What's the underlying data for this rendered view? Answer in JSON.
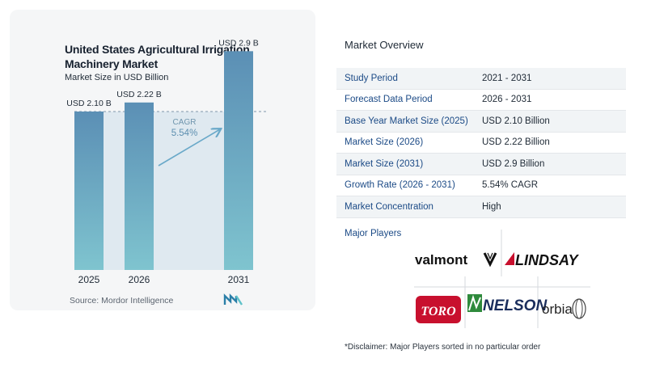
{
  "chart_data": {
    "type": "bar",
    "title": "United States Agricultural Irrigation Machinery Market",
    "subtitle": "Market Size in USD Billion",
    "categories": [
      "2025",
      "2026",
      "2031"
    ],
    "values": [
      2.1,
      2.22,
      2.9
    ],
    "value_labels": [
      "USD 2.10 B",
      "USD 2.22 B",
      "USD 2.9 B"
    ],
    "ylim": [
      0,
      3.0
    ],
    "cagr_label": "CAGR",
    "cagr_value": "5.54%",
    "colors": {
      "bar_top": "#5b8fb5",
      "bar_bottom": "#7fc4cf",
      "band": "#dfe9f0",
      "arrow": "#6aa9c9"
    }
  },
  "source": "Source:  Mordor Intelligence",
  "overview": {
    "title": "Market Overview",
    "rows": [
      {
        "label": "Study Period",
        "value": "2021 - 2031"
      },
      {
        "label": "Forecast Data Period",
        "value": "2026 - 2031"
      },
      {
        "label": "Base Year Market Size (2025)",
        "value": "USD 2.10 Billion"
      },
      {
        "label": "Market Size (2026)",
        "value": "USD 2.22 Billion"
      },
      {
        "label": "Market Size (2031)",
        "value": "USD 2.9 Billion"
      },
      {
        "label": "Growth Rate (2026 - 2031)",
        "value": "5.54% CAGR"
      },
      {
        "label": "Market Concentration",
        "value": "High"
      }
    ]
  },
  "players": {
    "title": "Major Players",
    "logos": [
      "valmont",
      "LINDSAY",
      "TORO",
      "NELSON",
      "orbia"
    ]
  },
  "disclaimer": "*Disclaimer: Major Players sorted in no particular order"
}
